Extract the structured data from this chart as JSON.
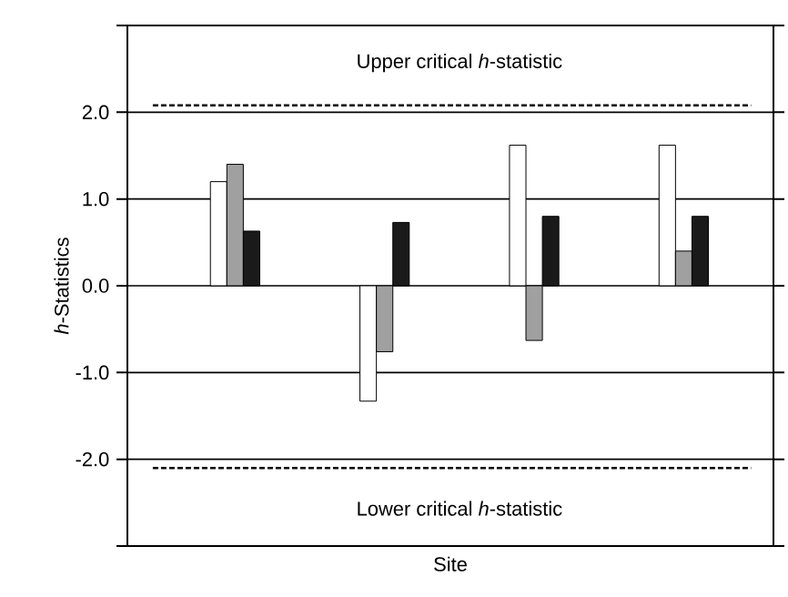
{
  "chart_data": {
    "type": "bar",
    "xlabel": "Site",
    "ylabel": "*h*-Statistics",
    "categories": [
      null,
      null,
      null,
      null
    ],
    "series": [
      {
        "color": "#ffffff",
        "values": [
          1.2,
          -1.33,
          1.62,
          1.62
        ]
      },
      {
        "color": "#a0a0a0",
        "values": [
          1.4,
          -0.76,
          -0.63,
          0.4
        ]
      },
      {
        "color": "#1a1a1a",
        "values": [
          0.63,
          0.73,
          0.8,
          0.8
        ]
      }
    ],
    "ylim": [
      -3,
      3
    ],
    "yticks": [
      {
        "value": -3,
        "label": null
      },
      {
        "value": -2,
        "label": "-2.0"
      },
      {
        "value": -1,
        "label": "-1.0"
      },
      {
        "value": 0,
        "label": "0.0"
      },
      {
        "value": 1,
        "label": "1.0"
      },
      {
        "value": 2,
        "label": "2.0"
      },
      {
        "value": 3,
        "label": null
      }
    ],
    "grid": "y",
    "ref_lines": [
      {
        "axis": "y",
        "value": 2.08,
        "label": "Upper critical *h*-statistic",
        "line_style": "dashed"
      },
      {
        "axis": "y",
        "value": -2.1,
        "label": "Lower critical *h*-statistic",
        "line_style": "dashed"
      }
    ]
  }
}
